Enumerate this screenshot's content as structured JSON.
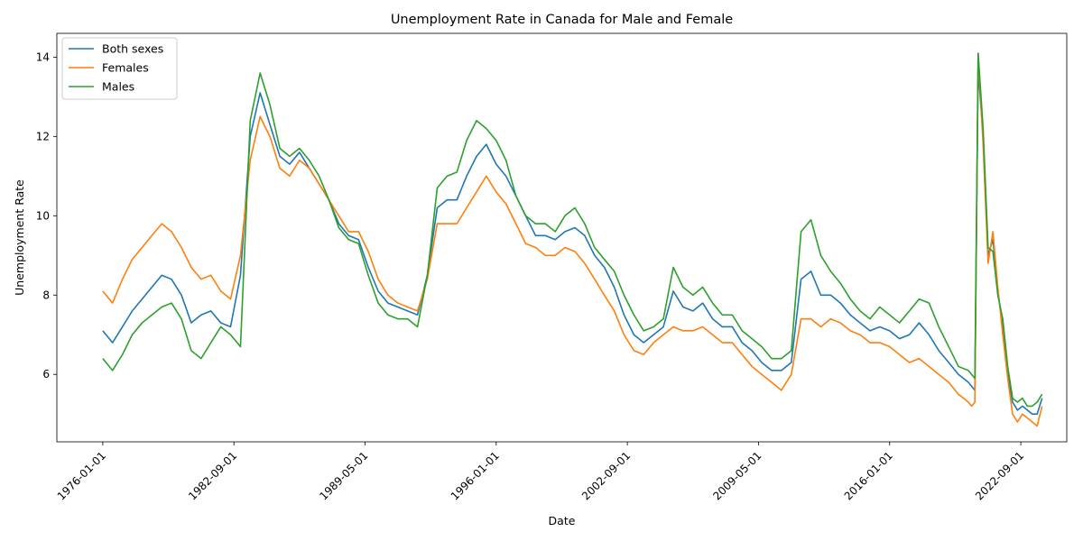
{
  "chart_data": {
    "type": "line",
    "title": "Unemployment Rate in Canada for Male and Female",
    "xlabel": "Date",
    "ylabel": "Unemployment Rate",
    "x_ticks": [
      "1976-01-01",
      "1982-09-01",
      "1989-05-01",
      "1996-01-01",
      "2002-09-01",
      "2009-05-01",
      "2016-01-01",
      "2022-09-01"
    ],
    "y_ticks": [
      6,
      8,
      10,
      12,
      14
    ],
    "xlim": [
      "1973-09-01",
      "2025-01-01"
    ],
    "ylim": [
      4.3,
      14.6
    ],
    "grid": false,
    "legend_position": "upper-left",
    "x": [
      "1976-01-01",
      "1976-07-01",
      "1977-01-01",
      "1977-07-01",
      "1978-01-01",
      "1978-07-01",
      "1979-01-01",
      "1979-07-01",
      "1980-01-01",
      "1980-07-01",
      "1981-01-01",
      "1981-07-01",
      "1982-01-01",
      "1982-07-01",
      "1983-01-01",
      "1983-07-01",
      "1984-01-01",
      "1984-07-01",
      "1985-01-01",
      "1985-07-01",
      "1986-01-01",
      "1986-07-01",
      "1987-01-01",
      "1987-07-01",
      "1988-01-01",
      "1988-07-01",
      "1989-01-01",
      "1989-07-01",
      "1990-01-01",
      "1990-07-01",
      "1991-01-01",
      "1991-07-01",
      "1992-01-01",
      "1992-07-01",
      "1993-01-01",
      "1993-07-01",
      "1994-01-01",
      "1994-07-01",
      "1995-01-01",
      "1995-07-01",
      "1996-01-01",
      "1996-07-01",
      "1997-01-01",
      "1997-07-01",
      "1998-01-01",
      "1998-07-01",
      "1999-01-01",
      "1999-07-01",
      "2000-01-01",
      "2000-07-01",
      "2001-01-01",
      "2001-07-01",
      "2002-01-01",
      "2002-07-01",
      "2003-01-01",
      "2003-07-01",
      "2004-01-01",
      "2004-07-01",
      "2005-01-01",
      "2005-07-01",
      "2006-01-01",
      "2006-07-01",
      "2007-01-01",
      "2007-07-01",
      "2008-01-01",
      "2008-07-01",
      "2009-01-01",
      "2009-07-01",
      "2010-01-01",
      "2010-07-01",
      "2011-01-01",
      "2011-07-01",
      "2012-01-01",
      "2012-07-01",
      "2013-01-01",
      "2013-07-01",
      "2014-01-01",
      "2014-07-01",
      "2015-01-01",
      "2015-07-01",
      "2016-01-01",
      "2016-07-01",
      "2017-01-01",
      "2017-07-01",
      "2018-01-01",
      "2018-07-01",
      "2019-01-01",
      "2019-07-01",
      "2020-01-01",
      "2020-03-01",
      "2020-05-01",
      "2020-07-01",
      "2020-10-01",
      "2021-01-01",
      "2021-04-01",
      "2021-07-01",
      "2021-10-01",
      "2022-01-01",
      "2022-04-01",
      "2022-07-01",
      "2022-10-01",
      "2023-01-01",
      "2023-04-01",
      "2023-07-01",
      "2023-10-01"
    ],
    "series": [
      {
        "name": "Both sexes",
        "color": "#1f77b4",
        "values": [
          7.1,
          6.8,
          7.2,
          7.6,
          7.9,
          8.2,
          8.5,
          8.4,
          8.0,
          7.3,
          7.5,
          7.6,
          7.3,
          7.2,
          8.5,
          12.0,
          13.1,
          12.3,
          11.5,
          11.3,
          11.6,
          11.2,
          10.8,
          10.4,
          9.8,
          9.5,
          9.4,
          8.7,
          8.1,
          7.8,
          7.7,
          7.6,
          7.5,
          8.5,
          10.2,
          10.4,
          10.4,
          11.0,
          11.5,
          11.8,
          11.3,
          11.0,
          10.5,
          10.0,
          9.5,
          9.5,
          9.4,
          9.6,
          9.7,
          9.5,
          9.0,
          8.7,
          8.2,
          7.5,
          7.0,
          6.8,
          7.0,
          7.2,
          8.1,
          7.7,
          7.6,
          7.8,
          7.4,
          7.2,
          7.2,
          6.8,
          6.6,
          6.3,
          6.1,
          6.1,
          6.3,
          8.4,
          8.6,
          8.0,
          8.0,
          7.8,
          7.5,
          7.3,
          7.1,
          7.2,
          7.1,
          6.9,
          7.0,
          7.3,
          7.0,
          6.6,
          6.3,
          6.0,
          5.8,
          5.7,
          5.6,
          13.7,
          12.0,
          9.0,
          9.4,
          8.1,
          7.2,
          6.0,
          5.3,
          5.1,
          5.2,
          5.1,
          5.0,
          5.0,
          5.4
        ]
      },
      {
        "name": "Females",
        "color": "#ff7f0e",
        "values": [
          8.1,
          7.8,
          8.4,
          8.9,
          9.2,
          9.5,
          9.8,
          9.6,
          9.2,
          8.7,
          8.4,
          8.5,
          8.1,
          7.9,
          9.0,
          11.4,
          12.5,
          12.0,
          11.2,
          11.0,
          11.4,
          11.2,
          10.8,
          10.4,
          10.0,
          9.6,
          9.6,
          9.1,
          8.4,
          8.0,
          7.8,
          7.7,
          7.6,
          8.4,
          9.8,
          9.8,
          9.8,
          10.2,
          10.6,
          11.0,
          10.6,
          10.3,
          9.8,
          9.3,
          9.2,
          9.0,
          9.0,
          9.2,
          9.1,
          8.8,
          8.4,
          8.0,
          7.6,
          7.0,
          6.6,
          6.5,
          6.8,
          7.0,
          7.2,
          7.1,
          7.1,
          7.2,
          7.0,
          6.8,
          6.8,
          6.5,
          6.2,
          6.0,
          5.8,
          5.6,
          6.0,
          7.4,
          7.4,
          7.2,
          7.4,
          7.3,
          7.1,
          7.0,
          6.8,
          6.8,
          6.7,
          6.5,
          6.3,
          6.4,
          6.2,
          6.0,
          5.8,
          5.5,
          5.3,
          5.2,
          5.3,
          14.1,
          11.8,
          8.8,
          9.6,
          8.2,
          7.0,
          5.9,
          5.0,
          4.8,
          5.0,
          4.9,
          4.8,
          4.7,
          5.2
        ]
      },
      {
        "name": "Males",
        "color": "#2ca02c",
        "values": [
          6.4,
          6.1,
          6.5,
          7.0,
          7.3,
          7.5,
          7.7,
          7.8,
          7.4,
          6.6,
          6.4,
          6.8,
          7.2,
          7.0,
          6.7,
          12.4,
          13.6,
          12.8,
          11.7,
          11.5,
          11.7,
          11.4,
          11.0,
          10.4,
          9.7,
          9.4,
          9.3,
          8.5,
          7.8,
          7.5,
          7.4,
          7.4,
          7.2,
          8.5,
          10.7,
          11.0,
          11.1,
          11.9,
          12.4,
          12.2,
          11.9,
          11.4,
          10.5,
          10.0,
          9.8,
          9.8,
          9.6,
          10.0,
          10.2,
          9.8,
          9.2,
          8.9,
          8.6,
          8.0,
          7.5,
          7.1,
          7.2,
          7.4,
          8.7,
          8.2,
          8.0,
          8.2,
          7.8,
          7.5,
          7.5,
          7.1,
          6.9,
          6.7,
          6.4,
          6.4,
          6.6,
          9.6,
          9.9,
          9.0,
          8.6,
          8.3,
          7.9,
          7.6,
          7.4,
          7.7,
          7.5,
          7.3,
          7.6,
          7.9,
          7.8,
          7.2,
          6.7,
          6.2,
          6.1,
          6.0,
          5.9,
          14.1,
          12.2,
          9.2,
          9.1,
          8.0,
          7.4,
          6.2,
          5.4,
          5.3,
          5.4,
          5.2,
          5.2,
          5.3,
          5.5
        ]
      }
    ]
  }
}
